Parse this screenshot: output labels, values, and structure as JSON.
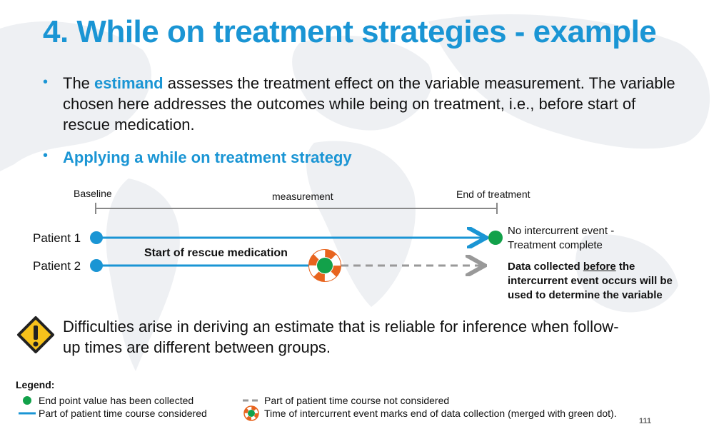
{
  "slide": {
    "title": "4. While on treatment strategies - example",
    "bullet1": {
      "prefix": "The ",
      "highlight": "estimand",
      "suffix": " assesses the treatment effect on the variable measurement. The variable chosen here addresses the outcomes while being on treatment, i.e., before start of rescue medication."
    },
    "bullet2": "Applying a while on treatment strategy",
    "bullet_glyph": "•",
    "page_number": "111"
  },
  "timeline": {
    "baseline": "Baseline",
    "measurement": "measurement",
    "end": "End of treatment",
    "patient1": "Patient 1",
    "patient2": "Patient 2",
    "rescue": "Start of rescue medication",
    "note1_line1": "No intercurrent event -",
    "note1_line2": "Treatment complete",
    "note2_pre": "Data collected ",
    "note2_underline": "before",
    "note2_post": " the",
    "note2_line2": "intercurrent event occurs will be",
    "note2_line3": "used to determine the variable"
  },
  "warning": {
    "icon": "warning-icon",
    "text": "Difficulties arise in deriving an estimate that is reliable for inference when follow-up times are different between groups."
  },
  "legend": {
    "title": "Legend:",
    "item1": "End point value has been collected",
    "item2": "Part of patient time course considered",
    "item3": "Part of patient time course not considered",
    "item4": "Time of intercurrent event marks end of data collection (merged with green dot)."
  },
  "colors": {
    "blue": "#1a95d4",
    "green": "#12a14a",
    "orange": "#e8641e",
    "gray": "#999999",
    "warning_yellow": "#f7c21b"
  }
}
